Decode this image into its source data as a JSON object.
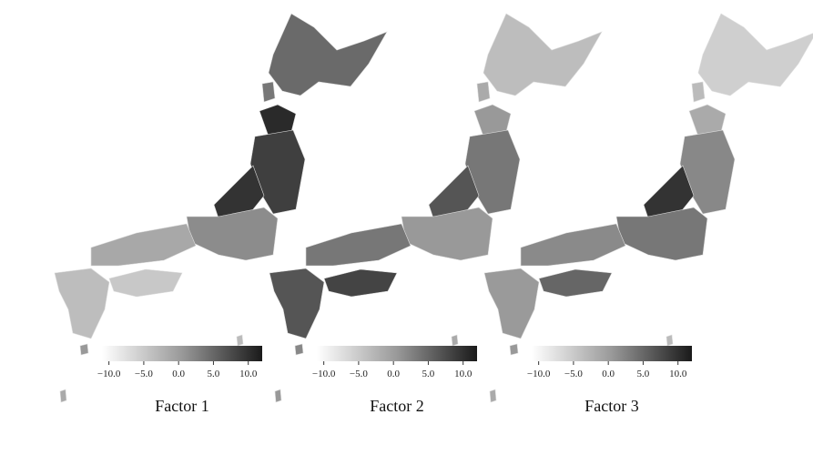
{
  "panels": [
    {
      "title": "Factor 1",
      "colorbar": {
        "lim": [
          -11,
          12
        ],
        "ticks": [
          {
            "value": -10,
            "label": "−10.0"
          },
          {
            "value": -5,
            "label": "−5.0"
          },
          {
            "value": 0,
            "label": "0.0"
          },
          {
            "value": 5,
            "label": "5.0"
          },
          {
            "value": 10,
            "label": "10.0"
          }
        ]
      }
    },
    {
      "title": "Factor 2",
      "colorbar": {
        "lim": [
          -11,
          12
        ],
        "ticks": [
          {
            "value": -10,
            "label": "−10.0"
          },
          {
            "value": -5,
            "label": "−5.0"
          },
          {
            "value": 0,
            "label": "0.0"
          },
          {
            "value": 5,
            "label": "5.0"
          },
          {
            "value": 10,
            "label": "10.0"
          }
        ]
      }
    },
    {
      "title": "Factor 3",
      "colorbar": {
        "lim": [
          -11,
          12
        ],
        "ticks": [
          {
            "value": -10,
            "label": "−10.0"
          },
          {
            "value": -5,
            "label": "−5.0"
          },
          {
            "value": 0,
            "label": "0.0"
          },
          {
            "value": 5,
            "label": "5.0"
          },
          {
            "value": 10,
            "label": "10.0"
          }
        ]
      }
    }
  ]
}
